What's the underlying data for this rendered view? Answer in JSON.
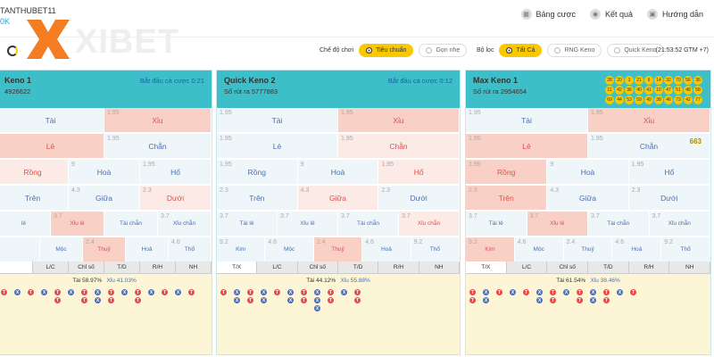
{
  "user": {
    "name": "TANTHUBET11",
    "balance": "0K"
  },
  "brand": {
    "watermark": "XIBET",
    "sub": "xibet.games"
  },
  "nav": [
    {
      "label": "Bảng cược",
      "icon": "table-icon"
    },
    {
      "label": "Kết quả",
      "icon": "result-icon"
    },
    {
      "label": "Hướng dẫn",
      "icon": "guide-icon"
    }
  ],
  "filters": {
    "mode_label": "Chế độ chơi",
    "modes": [
      "Tiêu chuẩn",
      "Gọn nhẹ"
    ],
    "filter_label": "Bộ lọc",
    "filters": [
      "Tất Cả",
      "RNG Keno",
      "Quick Keno"
    ],
    "time": "(21:53:52 GTM +7)"
  },
  "panels": [
    {
      "title": "Keno 1",
      "draw": "4926622",
      "countdown": "Bắt đầu cá cược 0:21",
      "rows": [
        [
          {
            "t": "Tài",
            "o": "",
            "s": "b"
          },
          {
            "t": "Xỉu",
            "o": "1.95",
            "s": "rs"
          }
        ],
        [
          {
            "t": "Lẻ",
            "o": "",
            "s": "rs"
          },
          {
            "t": "Chẵn",
            "o": "1.95",
            "s": "b"
          }
        ],
        [
          {
            "t": "Rồng",
            "o": "",
            "s": "r"
          },
          {
            "t": "Hoà",
            "o": "9",
            "s": "b"
          },
          {
            "t": "Hổ",
            "o": "1.95",
            "s": "b"
          }
        ],
        [
          {
            "t": "Trên",
            "o": "",
            "s": "b"
          },
          {
            "t": "Giữa",
            "o": "4.3",
            "s": "b"
          },
          {
            "t": "Dưới",
            "o": "2.3",
            "s": "r"
          }
        ],
        [
          {
            "t": "lẻ",
            "o": "",
            "s": "b"
          },
          {
            "t": "Xỉu lẻ",
            "o": "3.7",
            "s": "rs"
          },
          {
            "t": "Tài chẵn",
            "o": "",
            "s": "b"
          },
          {
            "t": "Xỉu chẵn",
            "o": "3.7",
            "s": "b"
          }
        ],
        [
          {
            "t": "",
            "o": "",
            "s": "b"
          },
          {
            "t": "Mộc",
            "o": "",
            "s": "b"
          },
          {
            "t": "Thuỷ",
            "o": "2.4",
            "s": "rs"
          },
          {
            "t": "Hoả",
            "o": "",
            "s": "b"
          },
          {
            "t": "Thổ",
            "o": "4.6",
            "s": "b"
          }
        ]
      ],
      "tabs": [
        "",
        "L/C",
        "Chỉ số",
        "T/D",
        "R/H",
        "NH"
      ],
      "tai_pct": "58.97%",
      "xiu_pct": "41.03%"
    },
    {
      "title": "Quick Keno 2",
      "draw": "Số rút ra 5777883",
      "countdown": "Bắt đầu cá cược 0:12",
      "rows": [
        [
          {
            "t": "Tài",
            "o": "1.95",
            "s": "b"
          },
          {
            "t": "Xỉu",
            "o": "1.95",
            "s": "rs"
          }
        ],
        [
          {
            "t": "Lẻ",
            "o": "1.95",
            "s": "b"
          },
          {
            "t": "Chẵn",
            "o": "1.95",
            "s": "r"
          }
        ],
        [
          {
            "t": "Rồng",
            "o": "1.95",
            "s": "b"
          },
          {
            "t": "Hoà",
            "o": "9",
            "s": "b"
          },
          {
            "t": "Hổ",
            "o": "1.95",
            "s": "r"
          }
        ],
        [
          {
            "t": "Trên",
            "o": "2.3",
            "s": "b"
          },
          {
            "t": "Giữa",
            "o": "4.3",
            "s": "r"
          },
          {
            "t": "Dưới",
            "o": "2.3",
            "s": "b"
          }
        ],
        [
          {
            "t": "Tài lẻ",
            "o": "3.7",
            "s": "b"
          },
          {
            "t": "Xỉu lẻ",
            "o": "3.7",
            "s": "b"
          },
          {
            "t": "Tài chẵn",
            "o": "3.7",
            "s": "b"
          },
          {
            "t": "Xỉu chẵn",
            "o": "3.7",
            "s": "r"
          }
        ],
        [
          {
            "t": "Kim",
            "o": "9.2",
            "s": "b"
          },
          {
            "t": "Mộc",
            "o": "4.6",
            "s": "b"
          },
          {
            "t": "Thuỷ",
            "o": "2.4",
            "s": "rs"
          },
          {
            "t": "Hoả",
            "o": "4.6",
            "s": "b"
          },
          {
            "t": "Thổ",
            "o": "9.2",
            "s": "b"
          }
        ]
      ],
      "tabs": [
        "T/X",
        "L/C",
        "Chỉ số",
        "T/D",
        "R/H",
        "NH"
      ],
      "tai_pct": "44.12%",
      "xiu_pct": "55.88%"
    },
    {
      "title": "Max Keno 1",
      "draw": "Số rút ra 2954654",
      "countdown": "",
      "total": "663",
      "balls": [
        "28",
        "20",
        "3",
        "21",
        "9",
        "14",
        "32",
        "70",
        "56",
        "36",
        "11",
        "42",
        "36",
        "40",
        "41",
        "10",
        "47",
        "51",
        "48",
        "58",
        "69",
        "44",
        "53",
        "59",
        "49",
        "38",
        "46",
        "73",
        "42",
        "77"
      ],
      "rows": [
        [
          {
            "t": "Tài",
            "o": "1.95",
            "s": "b"
          },
          {
            "t": "Xỉu",
            "o": "1.95",
            "s": "rs"
          }
        ],
        [
          {
            "t": "Lẻ",
            "o": "1.95",
            "s": "rs"
          },
          {
            "t": "Chẵn",
            "o": "1.95",
            "s": "b"
          }
        ],
        [
          {
            "t": "Rồng",
            "o": "1.95",
            "s": "rs"
          },
          {
            "t": "Hoà",
            "o": "9",
            "s": "b"
          },
          {
            "t": "Hổ",
            "o": "1.95",
            "s": "b"
          }
        ],
        [
          {
            "t": "Trên",
            "o": "2.3",
            "s": "rs"
          },
          {
            "t": "Giữa",
            "o": "4.3",
            "s": "b"
          },
          {
            "t": "Dưới",
            "o": "2.3",
            "s": "b"
          }
        ],
        [
          {
            "t": "Tài lẻ",
            "o": "3.7",
            "s": "b"
          },
          {
            "t": "Xỉu lẻ",
            "o": "3.7",
            "s": "rs"
          },
          {
            "t": "Tài chẵn",
            "o": "3.7",
            "s": "b"
          },
          {
            "t": "Xỉu chẵn",
            "o": "3.7",
            "s": "b"
          }
        ],
        [
          {
            "t": "Kim",
            "o": "9.2",
            "s": "rs"
          },
          {
            "t": "Mộc",
            "o": "4.6",
            "s": "b"
          },
          {
            "t": "Thuỷ",
            "o": "2.4",
            "s": "b"
          },
          {
            "t": "Hoả",
            "o": "4.6",
            "s": "b"
          },
          {
            "t": "Thổ",
            "o": "9.2",
            "s": "b"
          }
        ]
      ],
      "tabs": [
        "T/X",
        "L/C",
        "Chỉ số",
        "T/D",
        "R/H",
        "NH"
      ],
      "tai_pct": "61.54%",
      "xiu_pct": "38.46%"
    }
  ],
  "beads": [
    [
      "T",
      "X",
      "T",
      "X",
      "T",
      "T",
      "X",
      "T",
      "T",
      "X",
      "X",
      "T",
      "T",
      "X",
      "T",
      "T",
      "X",
      "T",
      "X",
      "T"
    ],
    [
      "T",
      "X",
      "X",
      "T",
      "T",
      "X",
      "X",
      "T",
      "X",
      "X",
      "T",
      "T",
      "X",
      "X",
      "X",
      "T",
      "T",
      "X",
      "T",
      "T"
    ],
    [
      "T",
      "T",
      "X",
      "X",
      "T",
      "X",
      "T",
      "X",
      "X",
      "T",
      "T",
      "X",
      "T",
      "T",
      "X",
      "X",
      "T",
      "T",
      "X",
      "T"
    ]
  ]
}
